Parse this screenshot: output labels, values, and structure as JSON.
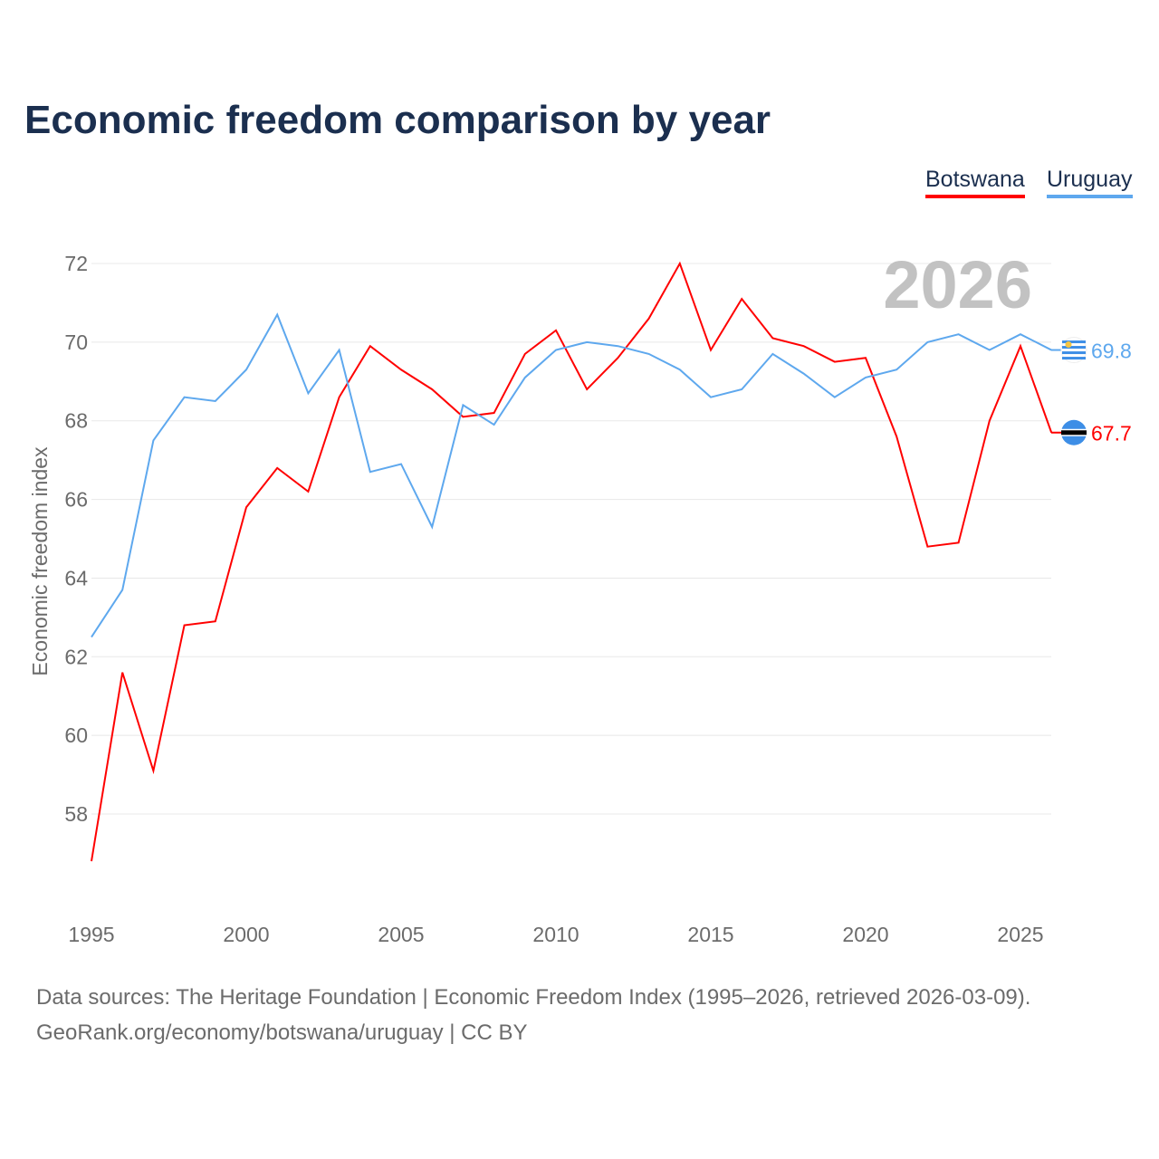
{
  "title": "Economic freedom comparison by year",
  "year_badge": "2026",
  "footer": {
    "line1": "Data sources: The Heritage Foundation | Economic Freedom Index (1995–2026, retrieved 2026-03-09).",
    "line2": "GeoRank.org/economy/botswana/uruguay | CC BY"
  },
  "chart_data": {
    "type": "line",
    "title": "Economic freedom comparison by year",
    "xlabel": "",
    "ylabel": "Economic freedom index",
    "xlim": [
      1995,
      2026
    ],
    "ylim": [
      56,
      72.5
    ],
    "yticks": [
      58,
      60,
      62,
      64,
      66,
      68,
      70,
      72
    ],
    "xticks": [
      1995,
      2000,
      2005,
      2010,
      2015,
      2020,
      2025
    ],
    "grid": true,
    "legend_placement": "top-right",
    "x": [
      1995,
      1996,
      1997,
      1998,
      1999,
      2000,
      2001,
      2002,
      2003,
      2004,
      2005,
      2006,
      2007,
      2008,
      2009,
      2010,
      2011,
      2012,
      2013,
      2014,
      2015,
      2016,
      2017,
      2018,
      2019,
      2020,
      2021,
      2022,
      2023,
      2024,
      2025,
      2026
    ],
    "series": [
      {
        "name": "Botswana",
        "color": "#ff0000",
        "end_label": "67.7",
        "flag": "botswana-flag",
        "values": [
          56.8,
          61.6,
          59.1,
          62.8,
          62.9,
          65.8,
          66.8,
          66.2,
          68.6,
          69.9,
          69.3,
          68.8,
          68.1,
          68.2,
          69.7,
          70.3,
          68.8,
          69.6,
          70.6,
          72.0,
          69.8,
          71.1,
          70.1,
          69.9,
          69.5,
          69.6,
          67.6,
          64.8,
          64.9,
          68.0,
          69.9,
          67.7
        ]
      },
      {
        "name": "Uruguay",
        "color": "#5ea8ee",
        "end_label": "69.8",
        "flag": "uruguay-flag",
        "values": [
          62.5,
          63.7,
          67.5,
          68.6,
          68.5,
          69.3,
          70.7,
          68.7,
          69.8,
          66.7,
          66.9,
          65.3,
          68.4,
          67.9,
          69.1,
          69.8,
          70.0,
          69.9,
          69.7,
          69.3,
          68.6,
          68.8,
          69.7,
          69.2,
          68.6,
          69.1,
          69.3,
          70.0,
          70.2,
          69.8,
          70.2,
          69.8
        ]
      }
    ]
  }
}
